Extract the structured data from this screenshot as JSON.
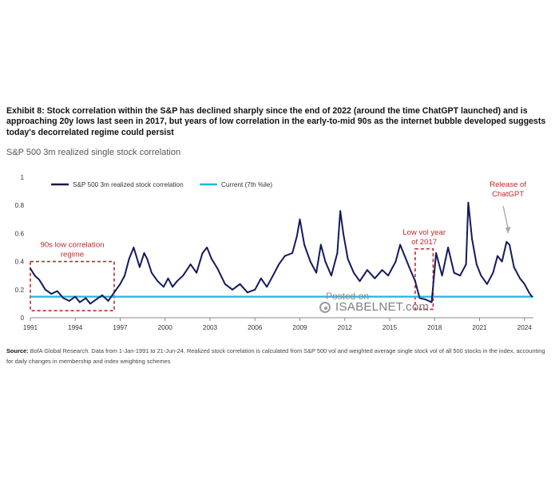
{
  "header": {
    "title": "Exhibit 8: Stock correlation within the S&P has declined sharply since the end of 2022 (around the time ChatGPT launched) and is approaching 20y lows last seen in 2017, but years of low correlation in the early-to-mid 90s as the internet bubble developed suggests today's decorrelated regime could persist",
    "subtitle": "S&P 500 3m realized single stock correlation"
  },
  "footer": {
    "source_label": "Source:",
    "source_text": " BofA Global Research. Data from 1-Jan-1991 to 21-Jun-24. Realized stock correlation is calculated from S&P 500 vol and weighted average single stock vol of all 500 stocks in the index, accounting for daily changes in membership and index weighting schemes"
  },
  "watermark": {
    "line1": "Posted on",
    "line2": "ISABELNET.com"
  },
  "colors": {
    "series": "#14195c",
    "current": "#22b6e0",
    "annotation": "#c0282d",
    "arrow": "#a9a9a9",
    "axis": "#8a8a8a"
  },
  "chart_data": {
    "type": "line",
    "title": "S&P 500 3m realized single stock correlation",
    "xlabel": "",
    "ylabel": "",
    "xlim": [
      1991,
      2024.6
    ],
    "ylim": [
      0,
      1
    ],
    "x_ticks": [
      1991,
      1994,
      1997,
      2000,
      2003,
      2006,
      2009,
      2012,
      2015,
      2018,
      2021,
      2024
    ],
    "y_ticks": [
      0,
      0.2,
      0.4,
      0.6,
      0.8,
      1
    ],
    "y_tick_labels": [
      "0",
      "0.2",
      "0.4",
      "0.6",
      "0.8",
      "1"
    ],
    "grid": false,
    "legend_position": "top-left",
    "series": [
      {
        "name": "S&P 500 3m realized stock correlation",
        "x": [
          1991.0,
          1991.3,
          1991.6,
          1992.0,
          1992.4,
          1992.8,
          1993.2,
          1993.6,
          1994.0,
          1994.3,
          1994.7,
          1995.0,
          1995.4,
          1995.8,
          1996.2,
          1996.6,
          1997.0,
          1997.3,
          1997.6,
          1997.9,
          1998.3,
          1998.6,
          1998.8,
          1999.1,
          1999.5,
          1999.9,
          2000.2,
          2000.5,
          2000.8,
          2001.2,
          2001.7,
          2002.1,
          2002.5,
          2002.8,
          2003.1,
          2003.5,
          2004.0,
          2004.5,
          2005.0,
          2005.5,
          2006.0,
          2006.4,
          2006.8,
          2007.2,
          2007.6,
          2008.0,
          2008.5,
          2008.8,
          2009.0,
          2009.3,
          2009.7,
          2010.1,
          2010.4,
          2010.7,
          2011.1,
          2011.5,
          2011.7,
          2011.9,
          2012.2,
          2012.6,
          2013.0,
          2013.5,
          2014.0,
          2014.5,
          2014.9,
          2015.4,
          2015.7,
          2016.0,
          2016.3,
          2016.7,
          2017.0,
          2017.4,
          2017.8,
          2018.1,
          2018.5,
          2018.9,
          2019.3,
          2019.7,
          2020.1,
          2020.25,
          2020.5,
          2020.8,
          2021.1,
          2021.5,
          2021.9,
          2022.2,
          2022.5,
          2022.8,
          2023.0,
          2023.3,
          2023.7,
          2024.0,
          2024.3,
          2024.5
        ],
        "y": [
          0.35,
          0.3,
          0.27,
          0.2,
          0.17,
          0.19,
          0.14,
          0.12,
          0.15,
          0.11,
          0.14,
          0.1,
          0.13,
          0.16,
          0.12,
          0.18,
          0.24,
          0.3,
          0.42,
          0.5,
          0.36,
          0.46,
          0.42,
          0.32,
          0.26,
          0.22,
          0.28,
          0.22,
          0.26,
          0.3,
          0.38,
          0.32,
          0.46,
          0.5,
          0.42,
          0.35,
          0.24,
          0.2,
          0.24,
          0.18,
          0.2,
          0.28,
          0.22,
          0.3,
          0.38,
          0.44,
          0.46,
          0.58,
          0.7,
          0.52,
          0.4,
          0.32,
          0.52,
          0.4,
          0.3,
          0.46,
          0.76,
          0.6,
          0.42,
          0.32,
          0.26,
          0.34,
          0.28,
          0.34,
          0.3,
          0.4,
          0.52,
          0.44,
          0.36,
          0.26,
          0.14,
          0.13,
          0.11,
          0.46,
          0.3,
          0.5,
          0.32,
          0.3,
          0.38,
          0.82,
          0.56,
          0.38,
          0.3,
          0.24,
          0.32,
          0.44,
          0.4,
          0.54,
          0.52,
          0.36,
          0.28,
          0.24,
          0.18,
          0.15
        ]
      },
      {
        "name": "Current (7th %ile)",
        "x": [
          1991,
          2024.6
        ],
        "y": [
          0.15,
          0.15
        ]
      }
    ],
    "annotations": [
      {
        "text_lines": [
          "90s low correlation",
          "regime"
        ],
        "type": "box",
        "x_range": [
          1991,
          1996.6
        ],
        "y_range": [
          0.05,
          0.4
        ]
      },
      {
        "text_lines": [
          "Low vol year",
          "of 2017"
        ],
        "type": "box",
        "x_range": [
          2016.7,
          2017.9
        ],
        "y_range": [
          0.06,
          0.49
        ]
      },
      {
        "text_lines": [
          "Release of",
          "ChatGPT"
        ],
        "type": "arrow",
        "target": [
          2022.9,
          0.59
        ]
      }
    ]
  }
}
